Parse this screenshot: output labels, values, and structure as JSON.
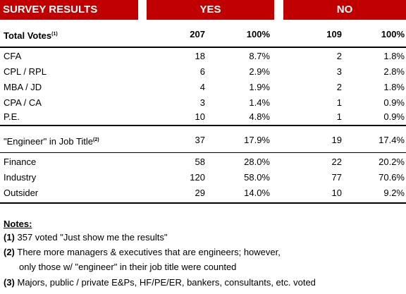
{
  "header": {
    "title": "SURVEY RESULTS",
    "yes": "YES",
    "no": "NO"
  },
  "total": {
    "label": "Total Votes",
    "note": "(1)",
    "yes_count": "207",
    "yes_pct": "100%",
    "no_count": "109",
    "no_pct": "100%"
  },
  "designations": [
    {
      "label": "CFA",
      "yes_count": "18",
      "yes_pct": "8.7%",
      "no_count": "2",
      "no_pct": "1.8%"
    },
    {
      "label": "CPL / RPL",
      "yes_count": "6",
      "yes_pct": "2.9%",
      "no_count": "3",
      "no_pct": "2.8%"
    },
    {
      "label": "MBA / JD",
      "yes_count": "4",
      "yes_pct": "1.9%",
      "no_count": "2",
      "no_pct": "1.8%"
    },
    {
      "label": "CPA / CA",
      "yes_count": "3",
      "yes_pct": "1.4%",
      "no_count": "1",
      "no_pct": "0.9%"
    },
    {
      "label": "P.E.",
      "yes_count": "10",
      "yes_pct": "4.8%",
      "no_count": "1",
      "no_pct": "0.9%"
    }
  ],
  "engineer": {
    "label": "\"Engineer\" in Job Title",
    "note": "(2)",
    "yes_count": "37",
    "yes_pct": "17.9%",
    "no_count": "19",
    "no_pct": "17.4%"
  },
  "sectors": [
    {
      "label": "Finance",
      "yes_count": "58",
      "yes_pct": "28.0%",
      "no_count": "22",
      "no_pct": "20.2%"
    },
    {
      "label": "Industry",
      "yes_count": "120",
      "yes_pct": "58.0%",
      "no_count": "77",
      "no_pct": "70.6%"
    },
    {
      "label": "Outsider",
      "yes_count": "29",
      "yes_pct": "14.0%",
      "no_count": "10",
      "no_pct": "9.2%"
    }
  ],
  "notes": {
    "heading": "Notes:",
    "n1_num": "(1)",
    "n1_text": " 357 voted \"Just show me the results\"",
    "n2_num": "(2)",
    "n2_text": " There more managers & executives that are engineers; however,",
    "n2_cont": "only those w/ \"engineer\" in their job title were counted",
    "n3_num": "(3)",
    "n3_text": " Majors, public / private E&Ps, HF/PE/ER, bankers, consultants, etc. voted"
  },
  "colors": {
    "header_bg": "#c00000",
    "header_text": "#ffffff"
  }
}
